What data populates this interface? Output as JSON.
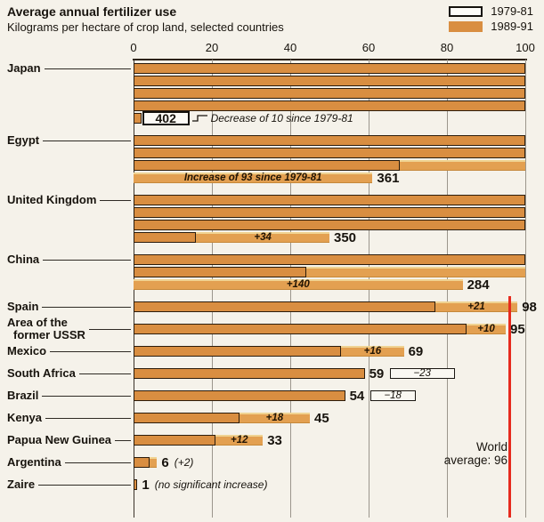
{
  "header": {
    "title": "Average annual fertilizer use",
    "subtitle": "Kilograms per hectare of crop land, selected countries"
  },
  "legend": {
    "items": [
      {
        "label": "1979-81",
        "swatch": "outline"
      },
      {
        "label": "1989-91",
        "swatch": "filled"
      }
    ]
  },
  "world_average": {
    "line1": "World",
    "line2": "average: 96",
    "value": 96
  },
  "colors": {
    "bar_orange": "#d98e41",
    "bar_increase": "#e3a051",
    "increase_highlight": "#f0d392",
    "world_average_line": "#e62b1e",
    "background": "#f5f2ea"
  },
  "chart_data": {
    "type": "bar",
    "title": "Average annual fertilizer use",
    "subtitle": "Kilograms per hectare of crop land, selected countries",
    "xlim": [
      0,
      100
    ],
    "x_ticks": [
      0,
      20,
      40,
      60,
      80,
      100
    ],
    "wrap_at": 100,
    "legend": [
      "1979-81",
      "1989-91"
    ],
    "world_average": 96,
    "countries": [
      {
        "name": "Japan",
        "v_1989_91": 402,
        "v_1979_81": 412,
        "change": -10,
        "rows": [
          {
            "bar": 100,
            "outline": 100
          },
          {
            "bar": 100,
            "outline": 100
          },
          {
            "bar": 100,
            "outline": 100
          },
          {
            "bar": 100,
            "outline": 100
          },
          {
            "bar": 2,
            "outline": 2,
            "boxed_label": "402",
            "box_units": 12,
            "bracket_note": "Decrease of 10 since 1979-81"
          }
        ]
      },
      {
        "name": "Egypt",
        "v_1989_91": 361,
        "v_1979_81": 268,
        "change": 93,
        "rows": [
          {
            "bar": 100,
            "outline": 100
          },
          {
            "bar": 100,
            "outline": 100
          },
          {
            "bar": 100,
            "outline": 68
          },
          {
            "bar": 61,
            "outline": 0,
            "text": "Increase of 93 since 1979-81",
            "label": "361"
          }
        ]
      },
      {
        "name": "United Kingdom",
        "v_1989_91": 350,
        "v_1979_81": 316,
        "change": 34,
        "rows": [
          {
            "bar": 100,
            "outline": 100
          },
          {
            "bar": 100,
            "outline": 100
          },
          {
            "bar": 100,
            "outline": 100
          },
          {
            "bar": 50,
            "outline": 16,
            "text": "+34",
            "label": "350"
          }
        ]
      },
      {
        "name": "China",
        "v_1989_91": 284,
        "v_1979_81": 144,
        "change": 140,
        "rows": [
          {
            "bar": 100,
            "outline": 100
          },
          {
            "bar": 100,
            "outline": 44
          },
          {
            "bar": 84,
            "outline": 0,
            "text": "+140",
            "label": "284"
          }
        ]
      },
      {
        "name": "Spain",
        "v_1989_91": 98,
        "v_1979_81": 77,
        "change": 21,
        "rows": [
          {
            "bar": 98,
            "outline": 77,
            "text": "+21",
            "label": "98"
          }
        ]
      },
      {
        "name": "Area of the former USSR",
        "name_lines": [
          "Area of the",
          "former USSR"
        ],
        "v_1989_91": 95,
        "v_1979_81": 85,
        "change": 10,
        "rows": [
          {
            "bar": 95,
            "outline": 85,
            "text": "+10",
            "label": "95"
          }
        ]
      },
      {
        "name": "Mexico",
        "v_1989_91": 69,
        "v_1979_81": 53,
        "change": 16,
        "rows": [
          {
            "bar": 69,
            "outline": 53,
            "text": "+16",
            "label": "69"
          }
        ]
      },
      {
        "name": "South Africa",
        "v_1989_91": 59,
        "v_1979_81": 82,
        "change": -23,
        "rows": [
          {
            "bar": 59,
            "outline": 59,
            "label": "59",
            "ext": 23,
            "ext_text": "−23"
          }
        ]
      },
      {
        "name": "Brazil",
        "v_1989_91": 54,
        "v_1979_81": 72,
        "change": -18,
        "rows": [
          {
            "bar": 54,
            "outline": 54,
            "label": "54",
            "ext": 18,
            "ext_text": "−18"
          }
        ]
      },
      {
        "name": "Kenya",
        "v_1989_91": 45,
        "v_1979_81": 27,
        "change": 18,
        "rows": [
          {
            "bar": 45,
            "outline": 27,
            "text": "+18",
            "label": "45"
          }
        ]
      },
      {
        "name": "Papua New Guinea",
        "v_1989_91": 33,
        "v_1979_81": 21,
        "change": 12,
        "rows": [
          {
            "bar": 33,
            "outline": 21,
            "text": "+12",
            "label": "33"
          }
        ]
      },
      {
        "name": "Argentina",
        "v_1989_91": 6,
        "v_1979_81": 4,
        "change": 2,
        "rows": [
          {
            "bar": 6,
            "outline": 4,
            "label": "6",
            "after": "(+2)"
          }
        ]
      },
      {
        "name": "Zaire",
        "v_1989_91": 1,
        "v_1979_81": 1,
        "rows": [
          {
            "bar": 1,
            "outline": 1,
            "label": "1",
            "after": "(no significant increase)"
          }
        ]
      }
    ]
  }
}
